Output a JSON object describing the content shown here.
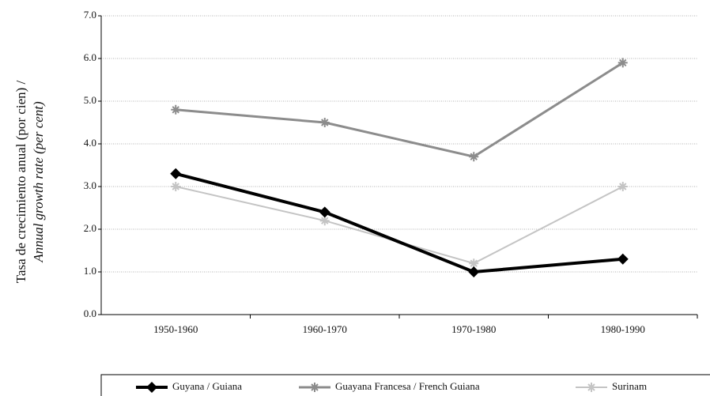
{
  "chart_data": {
    "type": "line",
    "y_label": [
      "Tasa de crecimiento anual (por cien) /",
      "Annual growth rate (per cent)"
    ],
    "categories": [
      "1950-1960",
      "1960-1970",
      "1970-1980",
      "1980-1990"
    ],
    "series": [
      {
        "name": "Guyana / Guiana",
        "color": "#000000",
        "width": 4,
        "marker": "diamond",
        "values": [
          3.3,
          2.4,
          1.0,
          1.3
        ]
      },
      {
        "name": "Guayana Francesa / French Guiana",
        "color": "#8c8c8c",
        "width": 3,
        "marker": "star",
        "values": [
          4.8,
          4.5,
          3.7,
          5.9
        ]
      },
      {
        "name": "Surinam",
        "color": "#c4c4c4",
        "width": 2,
        "marker": "star",
        "values": [
          3.0,
          2.2,
          1.2,
          3.0
        ]
      }
    ],
    "ylim": [
      0,
      7
    ],
    "yticks": [
      {
        "value": 0,
        "label": "0.0"
      },
      {
        "value": 1,
        "label": "1.0"
      },
      {
        "value": 2,
        "label": "2.0"
      },
      {
        "value": 3,
        "label": "3.0"
      },
      {
        "value": 4,
        "label": "4.0"
      },
      {
        "value": 5,
        "label": "5.0"
      },
      {
        "value": 6,
        "label": "6.0"
      },
      {
        "value": 7,
        "label": "7.0"
      }
    ],
    "grid": true,
    "legend": "bottom"
  }
}
